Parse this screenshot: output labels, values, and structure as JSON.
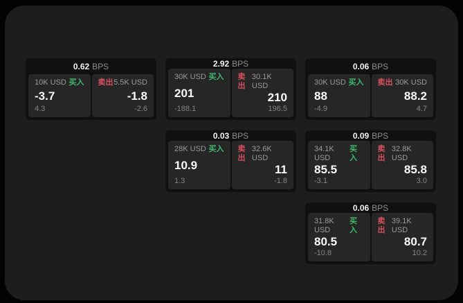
{
  "labels": {
    "bps_unit": "BPS",
    "buy": "买入",
    "sell": "卖出"
  },
  "colors": {
    "window_bg": "#1d1d1d",
    "page_bg": "#030303",
    "card_bg": "#101010",
    "panel_bg": "#262626",
    "buy_green": "#3cba6c",
    "sell_red": "#d8505f",
    "value_white": "#fafafa",
    "muted_gray": "#8c8c8c"
  },
  "cards": [
    {
      "bps": "0.62",
      "buy": {
        "amount": "10K USD",
        "value": "-3.7",
        "sub": "4.3"
      },
      "sell": {
        "amount": "5.5K USD",
        "value": "-1.8",
        "sub": "-2.6"
      }
    },
    {
      "bps": "2.92",
      "buy": {
        "amount": "30K USD",
        "value": "201",
        "sub": "-188.1"
      },
      "sell": {
        "amount": "30.1K USD",
        "value": "210",
        "sub": "196.5"
      }
    },
    {
      "bps": "0.06",
      "buy": {
        "amount": "30K USD",
        "value": "88",
        "sub": "-4.9"
      },
      "sell": {
        "amount": "30K USD",
        "value": "88.2",
        "sub": "4.7"
      }
    },
    {
      "bps": "0.03",
      "buy": {
        "amount": "28K USD",
        "value": "10.9",
        "sub": "1.3"
      },
      "sell": {
        "amount": "32.6K USD",
        "value": "11",
        "sub": "-1.8"
      }
    },
    {
      "bps": "0.09",
      "buy": {
        "amount": "34.1K USD",
        "value": "85.5",
        "sub": "-3.1"
      },
      "sell": {
        "amount": "32.8K USD",
        "value": "85.8",
        "sub": "3.0"
      }
    },
    {
      "bps": "0.06",
      "buy": {
        "amount": "31.8K USD",
        "value": "80.5",
        "sub": "-10.8"
      },
      "sell": {
        "amount": "39.1K USD",
        "value": "80.7",
        "sub": "10.2"
      }
    }
  ]
}
